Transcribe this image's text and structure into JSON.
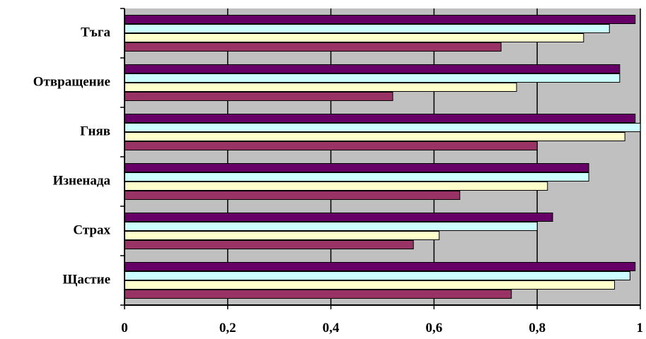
{
  "chart_data": {
    "type": "bar",
    "orientation": "horizontal",
    "categories": [
      "Щастие",
      "Страх",
      "Изненада",
      "Гняв",
      "Отвращение",
      "Тъга"
    ],
    "series": [
      {
        "values": [
          0.75,
          0.56,
          0.65,
          0.8,
          0.52,
          0.73
        ],
        "color": "#993366"
      },
      {
        "values": [
          0.95,
          0.61,
          0.82,
          0.97,
          0.76,
          0.89
        ],
        "color": "#FFFFCC"
      },
      {
        "values": [
          0.98,
          0.8,
          0.9,
          1.0,
          0.96,
          0.94
        ],
        "color": "#CCFFFF"
      },
      {
        "values": [
          0.99,
          0.83,
          0.9,
          0.99,
          0.96,
          0.99
        ],
        "color": "#660066"
      }
    ],
    "xlim": [
      0,
      1
    ],
    "xticks": [
      "0",
      "0,2",
      "0,4",
      "0,6",
      "0,8",
      "1"
    ],
    "plot_background": "#C0C0C0",
    "grid": true,
    "legend": false,
    "title": "",
    "xlabel": "",
    "ylabel": ""
  }
}
